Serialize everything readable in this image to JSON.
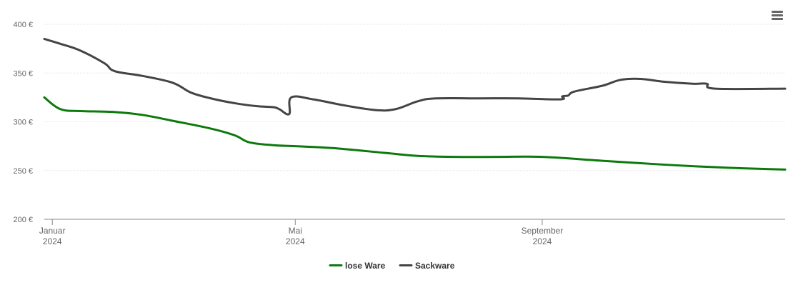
{
  "chart_data": {
    "type": "line",
    "title": "",
    "xlabel": "",
    "ylabel": "",
    "ylim": [
      200,
      400
    ],
    "y_ticks": [
      {
        "value": 200,
        "label": "200 €"
      },
      {
        "value": 250,
        "label": "250 €"
      },
      {
        "value": 300,
        "label": "300 €"
      },
      {
        "value": 350,
        "label": "350 €"
      },
      {
        "value": 400,
        "label": "400 €"
      }
    ],
    "x_range": [
      "2023-12-28",
      "2024-12-31"
    ],
    "x_ticks": [
      {
        "date": "2024-01-01",
        "label_line1": "Januar",
        "label_line2": "2024"
      },
      {
        "date": "2024-05-01",
        "label_line1": "Mai",
        "label_line2": "2024"
      },
      {
        "date": "2024-09-01",
        "label_line1": "September",
        "label_line2": "2024"
      }
    ],
    "grid": true,
    "legend_position": "bottom-center",
    "series": [
      {
        "name": "lose Ware",
        "color": "#0c7a0c",
        "points": [
          [
            "2023-12-28",
            325
          ],
          [
            "2024-01-05",
            313
          ],
          [
            "2024-01-15",
            311
          ],
          [
            "2024-02-01",
            310
          ],
          [
            "2024-02-15",
            307
          ],
          [
            "2024-03-01",
            301
          ],
          [
            "2024-03-20",
            293
          ],
          [
            "2024-04-01",
            286
          ],
          [
            "2024-04-08",
            279
          ],
          [
            "2024-04-20",
            276
          ],
          [
            "2024-05-01",
            275
          ],
          [
            "2024-05-20",
            273
          ],
          [
            "2024-06-15",
            268
          ],
          [
            "2024-07-01",
            265
          ],
          [
            "2024-07-20",
            264
          ],
          [
            "2024-08-10",
            264
          ],
          [
            "2024-09-01",
            264
          ],
          [
            "2024-10-01",
            260
          ],
          [
            "2024-11-01",
            256
          ],
          [
            "2024-12-01",
            253
          ],
          [
            "2024-12-31",
            251
          ]
        ]
      },
      {
        "name": "Sackware",
        "color": "#444444",
        "points": [
          [
            "2023-12-28",
            385
          ],
          [
            "2024-01-05",
            380
          ],
          [
            "2024-01-15",
            373
          ],
          [
            "2024-01-27",
            360
          ],
          [
            "2024-02-01",
            352
          ],
          [
            "2024-02-15",
            347
          ],
          [
            "2024-03-01",
            340
          ],
          [
            "2024-03-10",
            330
          ],
          [
            "2024-03-20",
            324
          ],
          [
            "2024-04-01",
            319
          ],
          [
            "2024-04-12",
            316
          ],
          [
            "2024-04-20",
            315
          ],
          [
            "2024-04-23",
            313
          ],
          [
            "2024-04-28",
            308
          ],
          [
            "2024-04-29",
            325
          ],
          [
            "2024-05-10",
            323
          ],
          [
            "2024-05-25",
            317
          ],
          [
            "2024-06-10",
            312
          ],
          [
            "2024-06-20",
            313
          ],
          [
            "2024-07-01",
            321
          ],
          [
            "2024-07-10",
            324
          ],
          [
            "2024-08-01",
            324
          ],
          [
            "2024-08-20",
            324
          ],
          [
            "2024-09-10",
            323
          ],
          [
            "2024-09-11",
            326
          ],
          [
            "2024-09-14",
            327
          ],
          [
            "2024-09-17",
            331
          ],
          [
            "2024-10-01",
            337
          ],
          [
            "2024-10-10",
            343
          ],
          [
            "2024-10-20",
            344
          ],
          [
            "2024-11-01",
            341
          ],
          [
            "2024-11-15",
            339
          ],
          [
            "2024-11-22",
            339
          ],
          [
            "2024-11-26",
            334
          ],
          [
            "2024-12-31",
            334
          ]
        ]
      }
    ]
  },
  "ui": {
    "menu_icon": "hamburger-menu-icon"
  }
}
